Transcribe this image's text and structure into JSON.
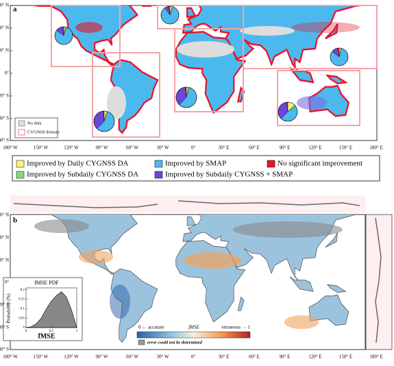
{
  "panel_a": {
    "label": "a",
    "no_data": "No data",
    "domain": "CYGNSS domain",
    "pies": [
      {
        "values": [
          3,
          2,
          80,
          13,
          2
        ]
      },
      {
        "values": [
          4,
          2,
          56,
          36,
          2
        ]
      },
      {
        "values": [
          4,
          2,
          84,
          8,
          2
        ]
      },
      {
        "values": [
          3,
          2,
          57,
          36,
          2
        ]
      },
      {
        "values": [
          3,
          2,
          80,
          12,
          3
        ]
      },
      {
        "values": [
          12,
          3,
          47,
          36,
          2
        ]
      }
    ]
  },
  "axes": {
    "lat_labels": [
      "60° N",
      "40° N",
      "20° N",
      "0°",
      "20° S",
      "40° S",
      "60° S"
    ],
    "lon_labels": [
      "180° W",
      "150° W",
      "120° W",
      "90° W",
      "60° W",
      "30° W",
      "0°",
      "30° E",
      "60° E",
      "90° E",
      "120° E",
      "150° E",
      "180° E"
    ]
  },
  "legend": {
    "items": [
      {
        "label": "Improved by Daily CYGNSS DA",
        "color": "#fff27a"
      },
      {
        "label": "Improved by Subdaily CYGNSS DA",
        "color": "#7de07a"
      },
      {
        "label": "Improved by SMAP",
        "color": "#4cb9ee"
      },
      {
        "label": "Improved by Subdaily CYGNSS + SMAP",
        "color": "#6a46d8"
      },
      {
        "label": "No significant improvement",
        "color": "#e8132b"
      }
    ]
  },
  "panel_b": {
    "label": "b",
    "colorbar": {
      "low": "0 ← accurate",
      "mid": "fMSE",
      "high": "erroneous → 1",
      "none": "error could not be determined"
    },
    "inset": {
      "title": "fMSE PDF",
      "ylabel": "Probability (%)",
      "xlabel": "fMSE",
      "x": [
        0,
        0.1,
        0.2,
        0.3,
        0.4,
        0.5,
        0.6,
        0.7,
        0.8,
        0.9,
        1
      ],
      "y": [
        0,
        0.005,
        0.02,
        0.05,
        0.1,
        0.14,
        0.17,
        0.19,
        0.16,
        0.09,
        0
      ],
      "xlim": [
        0,
        1
      ],
      "ylim": [
        0,
        0.21
      ],
      "xticks": [
        0,
        0.5,
        1
      ],
      "yticks": [
        0,
        0.05,
        0.1,
        0.15,
        0.2
      ]
    }
  }
}
